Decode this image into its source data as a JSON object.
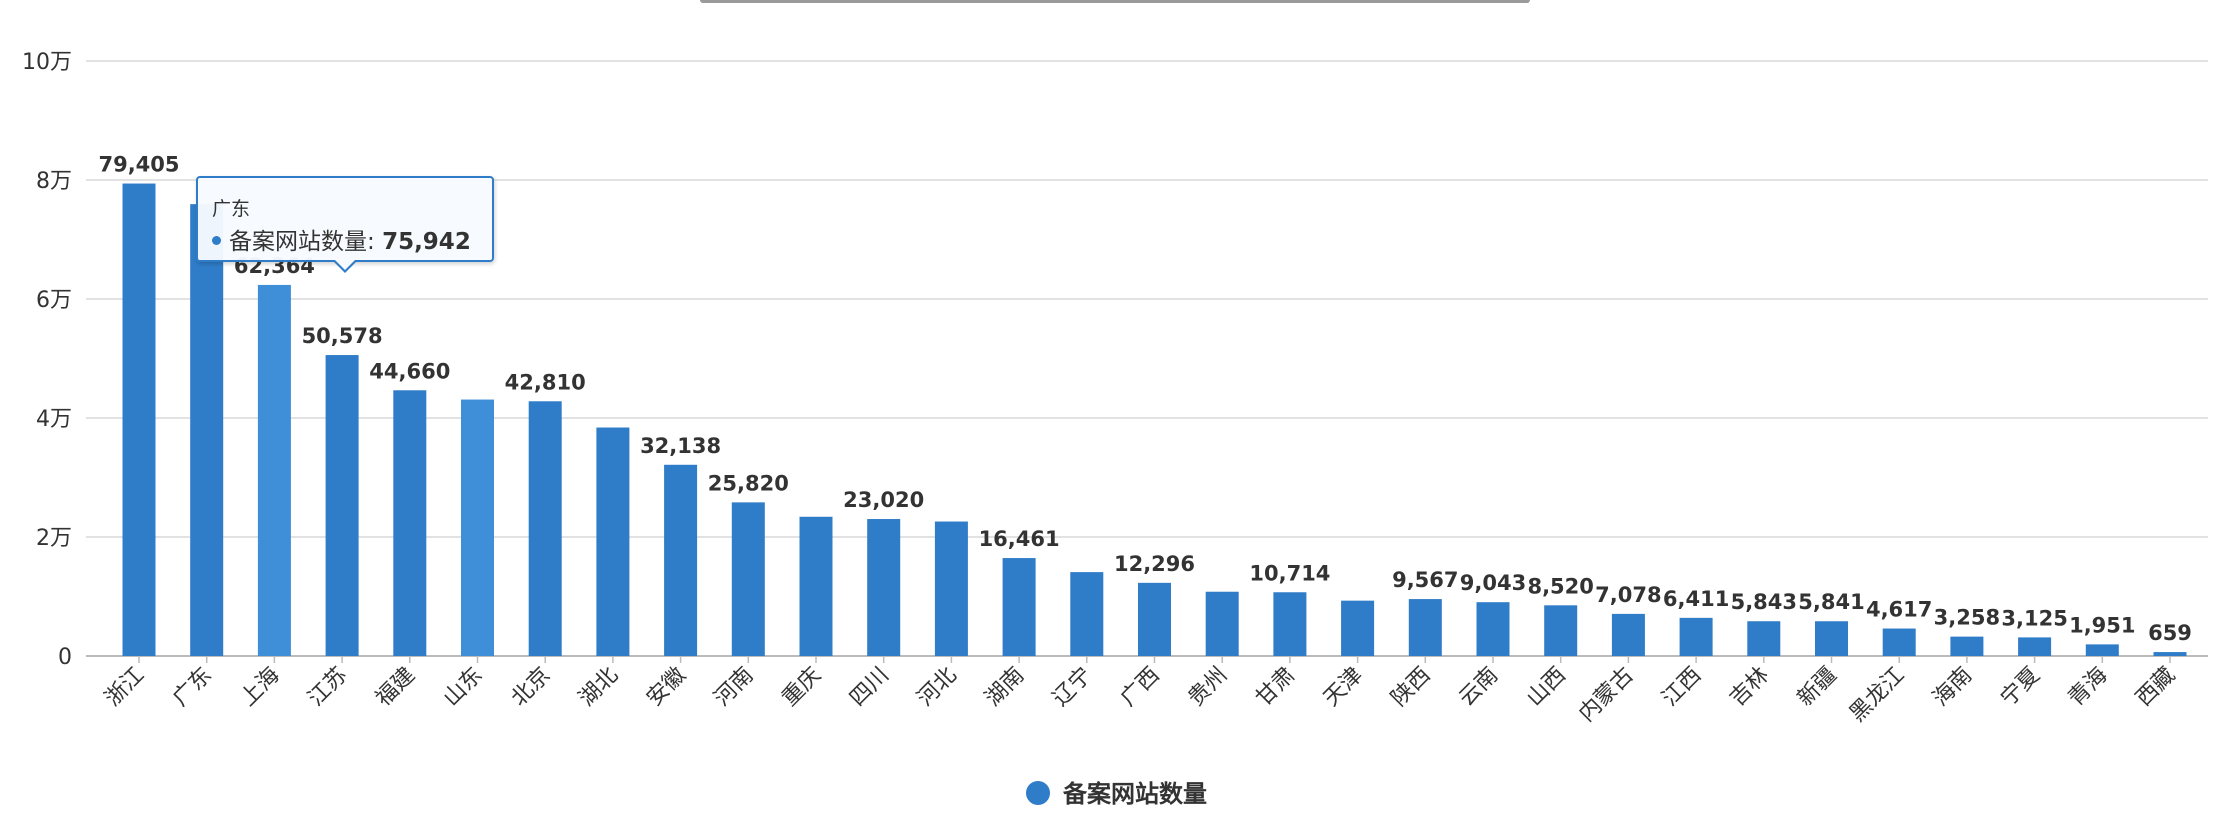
{
  "chart_data": {
    "type": "bar",
    "categories": [
      "浙江",
      "广东",
      "上海",
      "江苏",
      "福建",
      "山东",
      "北京",
      "湖北",
      "安徽",
      "河南",
      "重庆",
      "四川",
      "河北",
      "湖南",
      "辽宁",
      "广西",
      "贵州",
      "甘肃",
      "天津",
      "陕西",
      "云南",
      "山西",
      "内蒙古",
      "江西",
      "吉林",
      "新疆",
      "黑龙江",
      "海南",
      "宁夏",
      "青海",
      "西藏"
    ],
    "series": [
      {
        "name": "备案网站数量",
        "values": [
          79405,
          75942,
          62364,
          50578,
          44660,
          43100,
          42810,
          38400,
          32138,
          25820,
          23400,
          23020,
          22600,
          16461,
          14100,
          12296,
          10800,
          10714,
          9300,
          9567,
          9043,
          8520,
          7078,
          6411,
          5843,
          5841,
          4617,
          3258,
          3125,
          1951,
          659
        ]
      }
    ],
    "data_labels": [
      "79,405",
      "",
      "62,364",
      "50,578",
      "44,660",
      "",
      "42,810",
      "",
      "32,138",
      "25,820",
      "",
      "23,020",
      "",
      "16,461",
      "",
      "12,296",
      "",
      "10,714",
      "",
      "9,567",
      "9,043",
      "8,520",
      "7,078",
      "6,411",
      "5,843",
      "5,841",
      "4,617",
      "3,258",
      "3,125",
      "1,951",
      "659"
    ],
    "highlighted_categories": [
      "上海",
      "山东"
    ],
    "y_ticks": [
      {
        "value": 0,
        "label": "0"
      },
      {
        "value": 20000,
        "label": "2万"
      },
      {
        "value": 40000,
        "label": "4万"
      },
      {
        "value": 60000,
        "label": "6万"
      },
      {
        "value": 80000,
        "label": "8万"
      },
      {
        "value": 100000,
        "label": "10万"
      }
    ],
    "ylim": [
      0,
      100000
    ],
    "grid": true,
    "legend": {
      "position": "bottom-center",
      "label": "备案网站数量"
    },
    "colors": {
      "bar": "#2f7cc8",
      "bar_highlight": "#3f8ed8",
      "grid": "#d9d9d9",
      "axis": "#bbbbbb",
      "text": "#333333"
    }
  },
  "tooltip": {
    "category": "广东",
    "series_label": "备案网站数量: ",
    "value": "75,942"
  }
}
